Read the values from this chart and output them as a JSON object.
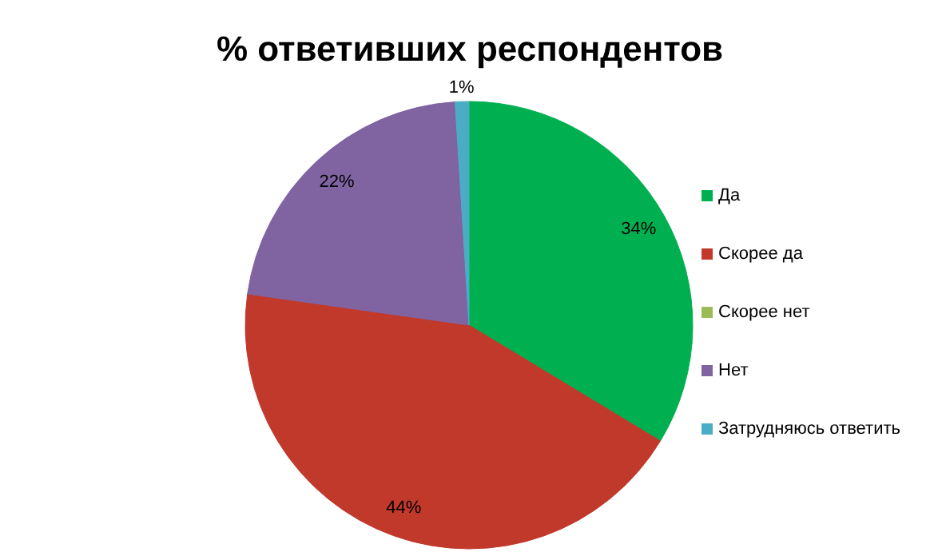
{
  "chart_data": {
    "type": "pie",
    "title": "% ответивших респондентов",
    "categories": [
      "Да",
      "Скорее да",
      "Скорее нет",
      "Нет",
      "Затрудняюсь ответить"
    ],
    "values": [
      34,
      44,
      0,
      22,
      1
    ],
    "colors": [
      "#00b050",
      "#c0392b",
      "#9bbb59",
      "#8064a2",
      "#4bacc6"
    ],
    "value_labels": [
      "34%",
      "44%",
      null,
      "22%",
      "1%"
    ],
    "legend": "right"
  }
}
